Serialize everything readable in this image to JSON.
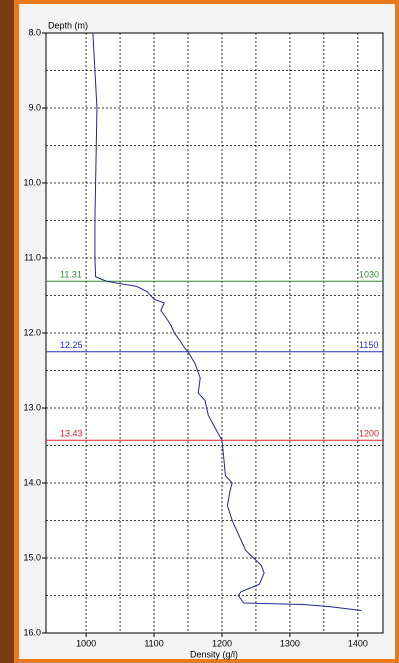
{
  "chart_data": {
    "type": "line",
    "ylabel": "Depth (m)",
    "xlabel": "Density (g/l)",
    "color": "#1f2a8c",
    "x": [
      1010,
      1013,
      1016,
      1015,
      1014,
      1013,
      1013,
      1014,
      1030,
      1075,
      1090,
      1100,
      1115,
      1110,
      1118,
      1125,
      1130,
      1138,
      1145,
      1150,
      1160,
      1168,
      1165,
      1175,
      1180,
      1192,
      1200,
      1203,
      1205,
      1215,
      1212,
      1208,
      1215,
      1225,
      1235,
      1258,
      1262,
      1255,
      1228,
      1224,
      1232,
      1320,
      1360,
      1405
    ],
    "values": [
      8.0,
      8.5,
      9.0,
      9.5,
      10.0,
      10.5,
      11.0,
      11.25,
      11.31,
      11.38,
      11.45,
      11.55,
      11.6,
      11.7,
      11.8,
      11.9,
      12.0,
      12.1,
      12.2,
      12.25,
      12.4,
      12.6,
      12.8,
      12.9,
      13.1,
      13.3,
      13.43,
      13.7,
      13.9,
      14.0,
      14.1,
      14.3,
      14.5,
      14.7,
      14.9,
      15.1,
      15.2,
      15.35,
      15.45,
      15.5,
      15.6,
      15.62,
      15.65,
      15.7
    ],
    "xlim": [
      941,
      1437
    ],
    "ylim": [
      8,
      16
    ],
    "y_inverted": true,
    "xticks": [
      1000,
      1100,
      1200,
      1300,
      1400
    ],
    "yticks": [
      {
        "value": 8,
        "label": "8.0"
      },
      {
        "value": 9,
        "label": "9.0"
      },
      {
        "value": 10,
        "label": "10.0"
      },
      {
        "value": 11,
        "label": "11.0"
      },
      {
        "value": 12,
        "label": "12.0"
      },
      {
        "value": 13,
        "label": "13.0"
      },
      {
        "value": 14,
        "label": "14.0"
      },
      {
        "value": 15,
        "label": "15.0"
      },
      {
        "value": 16,
        "label": "16.0"
      }
    ],
    "xgrid": [
      1000,
      1050,
      1100,
      1150,
      1200,
      1250,
      1300,
      1350,
      1400
    ],
    "ygrid": [
      8.5,
      9,
      9.5,
      10,
      10.5,
      11,
      11.5,
      12,
      12.5,
      13,
      13.5,
      14,
      14.5,
      15,
      15.5
    ],
    "markers": [
      {
        "depth": 11.31,
        "density": 1030,
        "color": "#2e8b2e"
      },
      {
        "depth": 12.25,
        "density": 1150,
        "color": "#2330b0"
      },
      {
        "depth": 13.43,
        "density": 1200,
        "color": "#e02020"
      }
    ]
  }
}
